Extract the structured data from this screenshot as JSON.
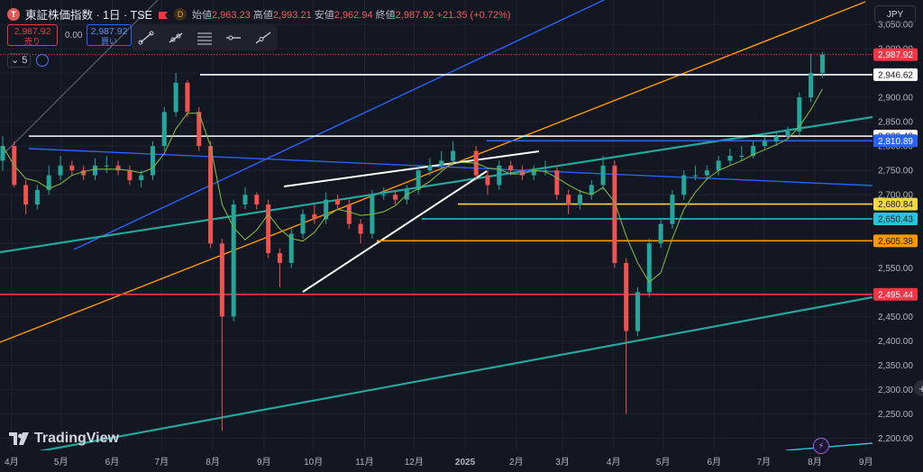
{
  "header": {
    "logo_letter": "T",
    "symbol": "東証株価指数 · 1日 · TSE",
    "d_badge": "D",
    "open_label": "始値",
    "open": "2,963.23",
    "high_label": "高値",
    "high": "2,993.21",
    "low_label": "安値",
    "low": "2,962.94",
    "close_label": "終値",
    "close": "2,987.92",
    "change": "+21.35 (+0.72%)"
  },
  "trade": {
    "sell_price": "2,987.92",
    "sell_label": "売り",
    "spread": "0.00",
    "buy_price": "2,987.92",
    "buy_label": "買い"
  },
  "controls": {
    "collapse_label": "5"
  },
  "currency": {
    "label": "JPY"
  },
  "branding": {
    "name": "TradingView"
  },
  "chart_data": {
    "type": "candlestick",
    "title": "",
    "ylim": [
      2175,
      3100
    ],
    "y_ticks": [
      2200,
      2250,
      2300,
      2350,
      2400,
      2450,
      2500,
      2550,
      2600,
      2650,
      2700,
      2750,
      2800,
      2850,
      2900,
      2950,
      3000,
      3050
    ],
    "y_tick_labels": [
      "2,200.00",
      "2,250.00",
      "2,300.00",
      "2,350.00",
      "2,400.00",
      "2,450.00",
      "2,500.00",
      "2,550.00",
      "2,600.00",
      "2,650.00",
      "2,700.00",
      "2,750.00",
      "2,800.00",
      "2,850.00",
      "2,900.00",
      "2,950.00",
      "3,000.00",
      "3,050.00"
    ],
    "x_labels": [
      "4月",
      "5月",
      "6月",
      "7月",
      "8月",
      "9月",
      "10月",
      "11月",
      "12月",
      "2025",
      "2月",
      "3月",
      "4月",
      "5月",
      "6月",
      "7月",
      "8月",
      "9月"
    ],
    "x_range": [
      "2024-03-25",
      "2025-09-05"
    ],
    "x_label_dates": [
      "2024-04-01",
      "2024-05-01",
      "2024-06-01",
      "2024-07-01",
      "2024-08-01",
      "2024-09-01",
      "2024-10-01",
      "2024-11-01",
      "2024-12-01",
      "2025-01-01",
      "2025-02-01",
      "2025-03-01",
      "2025-04-01",
      "2025-05-01",
      "2025-06-01",
      "2025-07-01",
      "2025-08-01",
      "2025-09-01"
    ],
    "closes_note": "approximate closing values per period",
    "series": [
      {
        "name": "",
        "dates": [
          "2024-03-25",
          "2024-04-01",
          "2024-04-08",
          "2024-04-15",
          "2024-04-22",
          "2024-04-29",
          "2024-05-06",
          "2024-05-13",
          "2024-05-20",
          "2024-05-27",
          "2024-06-03",
          "2024-06-10",
          "2024-06-17",
          "2024-06-24",
          "2024-07-01",
          "2024-07-08",
          "2024-07-15",
          "2024-07-22",
          "2024-07-29",
          "2024-08-05",
          "2024-08-12",
          "2024-08-19",
          "2024-08-26",
          "2024-09-02",
          "2024-09-09",
          "2024-09-16",
          "2024-09-23",
          "2024-09-30",
          "2024-10-07",
          "2024-10-14",
          "2024-10-21",
          "2024-10-28",
          "2024-11-04",
          "2024-11-11",
          "2024-11-18",
          "2024-11-25",
          "2024-12-02",
          "2024-12-09",
          "2024-12-16",
          "2024-12-23",
          "2025-01-06",
          "2025-01-13",
          "2025-01-20",
          "2025-01-27",
          "2025-02-03",
          "2025-02-10",
          "2025-02-17",
          "2025-02-24",
          "2025-03-03",
          "2025-03-10",
          "2025-03-17",
          "2025-03-24",
          "2025-03-31",
          "2025-04-07",
          "2025-04-14",
          "2025-04-21",
          "2025-04-28",
          "2025-05-05",
          "2025-05-12",
          "2025-05-19",
          "2025-05-26",
          "2025-06-02",
          "2025-06-09",
          "2025-06-16",
          "2025-06-23",
          "2025-06-30",
          "2025-07-07",
          "2025-07-14",
          "2025-07-21",
          "2025-07-28",
          "2025-08-04"
        ],
        "open": [
          2770,
          2800,
          2720,
          2680,
          2710,
          2740,
          2760,
          2750,
          2740,
          2760,
          2760,
          2750,
          2730,
          2740,
          2800,
          2870,
          2930,
          2870,
          2800,
          2600,
          2450,
          2680,
          2700,
          2680,
          2580,
          2560,
          2620,
          2660,
          2650,
          2690,
          2680,
          2640,
          2620,
          2700,
          2700,
          2690,
          2710,
          2750,
          2760,
          2770,
          2790,
          2740,
          2720,
          2760,
          2750,
          2740,
          2750,
          2750,
          2700,
          2680,
          2700,
          2720,
          2760,
          2560,
          2420,
          2500,
          2600,
          2640,
          2700,
          2740,
          2740,
          2750,
          2770,
          2780,
          2780,
          2800,
          2810,
          2820,
          2830,
          2900,
          2950
        ],
        "close": [
          2800,
          2720,
          2680,
          2710,
          2740,
          2760,
          2750,
          2740,
          2760,
          2760,
          2750,
          2730,
          2740,
          2800,
          2870,
          2930,
          2870,
          2800,
          2600,
          2450,
          2680,
          2700,
          2680,
          2580,
          2560,
          2620,
          2660,
          2650,
          2690,
          2680,
          2640,
          2620,
          2700,
          2700,
          2690,
          2710,
          2750,
          2760,
          2770,
          2790,
          2740,
          2720,
          2760,
          2750,
          2740,
          2750,
          2750,
          2700,
          2680,
          2700,
          2720,
          2760,
          2560,
          2420,
          2500,
          2600,
          2640,
          2700,
          2740,
          2740,
          2750,
          2770,
          2780,
          2780,
          2800,
          2810,
          2820,
          2830,
          2900,
          2950,
          2988
        ],
        "high": [
          2820,
          2810,
          2730,
          2720,
          2760,
          2780,
          2770,
          2760,
          2775,
          2780,
          2770,
          2760,
          2750,
          2810,
          2880,
          2950,
          2935,
          2880,
          2810,
          2610,
          2690,
          2715,
          2705,
          2690,
          2590,
          2630,
          2670,
          2680,
          2705,
          2700,
          2690,
          2650,
          2710,
          2715,
          2710,
          2720,
          2760,
          2775,
          2790,
          2810,
          2800,
          2750,
          2770,
          2770,
          2760,
          2760,
          2770,
          2760,
          2710,
          2710,
          2730,
          2780,
          2770,
          2570,
          2510,
          2610,
          2650,
          2710,
          2750,
          2760,
          2760,
          2780,
          2795,
          2800,
          2810,
          2820,
          2830,
          2840,
          2910,
          2990,
          2993
        ],
        "low": [
          2750,
          2715,
          2660,
          2670,
          2700,
          2730,
          2740,
          2730,
          2730,
          2745,
          2740,
          2720,
          2715,
          2730,
          2790,
          2860,
          2860,
          2790,
          2590,
          2215,
          2440,
          2670,
          2670,
          2570,
          2510,
          2550,
          2610,
          2640,
          2640,
          2670,
          2630,
          2600,
          2610,
          2690,
          2680,
          2680,
          2700,
          2740,
          2750,
          2760,
          2730,
          2700,
          2710,
          2740,
          2730,
          2730,
          2740,
          2690,
          2660,
          2670,
          2690,
          2710,
          2550,
          2250,
          2410,
          2490,
          2590,
          2630,
          2690,
          2730,
          2730,
          2740,
          2760,
          2770,
          2775,
          2795,
          2800,
          2815,
          2820,
          2890,
          2940
        ]
      }
    ],
    "moving_average": "green line",
    "horizontal_levels": [
      {
        "value": "2,987.92",
        "color": "#f23645",
        "label": "2,987.92"
      },
      {
        "value": "2,946.62",
        "color": "#ffffff",
        "label": "2,946.62"
      },
      {
        "value": "2,820.40",
        "color": "#ffffff",
        "label": "2,820.40"
      },
      {
        "value": "2,810.89",
        "color": "#2962ff",
        "label": "2,810.89"
      },
      {
        "value": "2,680.84",
        "color": "#f5d742",
        "label": "2,680.84"
      },
      {
        "value": "2,650.43",
        "color": "#26c6da",
        "label": "2,650.43"
      },
      {
        "value": "2,605.38",
        "color": "#ff9800",
        "label": "2,605.38"
      },
      {
        "value": "2,495.44",
        "color": "#f23645",
        "label": "2,495.44"
      }
    ],
    "grid": true,
    "colors": {
      "up": "#26a69a",
      "down": "#ef5350",
      "ma": "#7cb342",
      "background": "#131722"
    }
  }
}
